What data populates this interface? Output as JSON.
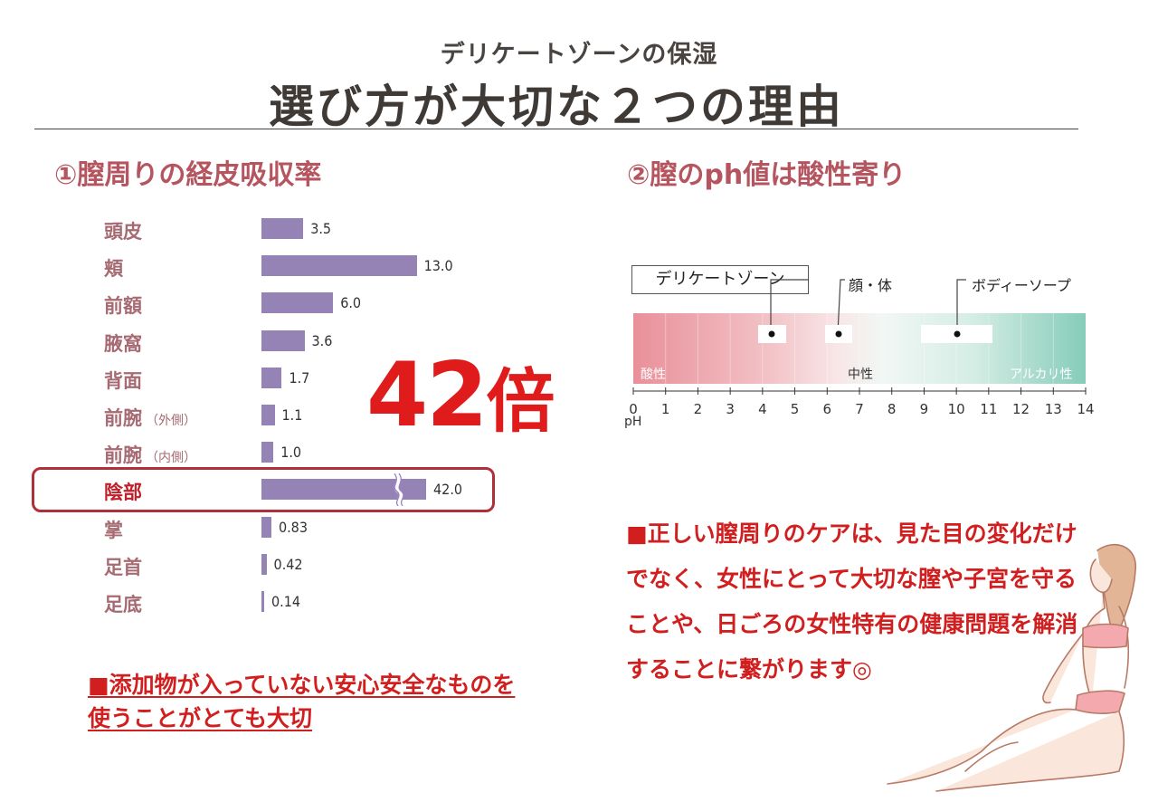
{
  "header": {
    "subtitle": "デリケートゾーンの保湿",
    "title": "選び方が大切な２つの理由"
  },
  "section1": {
    "heading": "①膣周りの経皮吸収率",
    "big_ratio_number": "42",
    "big_ratio_unit": "倍",
    "note": "■添加物が入っていない安心安全なものを使うことがとても大切"
  },
  "chart_data": {
    "type": "bar",
    "orientation": "horizontal",
    "categories": [
      "頭皮",
      "頬",
      "前額",
      "腋窩",
      "背面",
      "前腕",
      "前腕",
      "陰部",
      "掌",
      "足首",
      "足底"
    ],
    "category_notes": [
      "",
      "",
      "",
      "",
      "",
      "（外側）",
      "（内側）",
      "",
      "",
      "",
      ""
    ],
    "values": [
      3.5,
      13.0,
      6.0,
      3.6,
      1.7,
      1.1,
      1.0,
      42.0,
      0.83,
      0.42,
      0.14
    ],
    "value_labels": [
      "3.5",
      "13.0",
      "6.0",
      "3.6",
      "1.7",
      "1.1",
      "1.0",
      "42.0",
      "0.83",
      "0.42",
      "0.14"
    ],
    "highlighted": "陰部",
    "axis_break_on": "陰部",
    "bar_color": "#9583b6"
  },
  "section2": {
    "heading": "②膣のph値は酸性寄り",
    "zone_label": "デリケートゾーン",
    "callout_face": "顔・体",
    "callout_soap": "ボディーソープ",
    "acid_label": "酸性",
    "neutral_label": "中性",
    "alkali_label": "アルカリ性",
    "ph_unit": "pH",
    "ph_ticks": [
      "0",
      "1",
      "2",
      "3",
      "4",
      "5",
      "6",
      "7",
      "8",
      "9",
      "10",
      "11",
      "12",
      "13",
      "14"
    ],
    "ph_markers": {
      "delicate_zone": 4.3,
      "face_body": 6.3,
      "body_soap": 10.0
    },
    "note": "■正しい膣周りのケアは、見た目の変化だけでなく、女性にとって大切な膣や子宮を守ることや、日ごろの女性特有の健康問題を解消することに繋がります◎"
  },
  "colors": {
    "accent_red": "#d11f1f",
    "heading_rose": "#b5555f",
    "acid_pink": "#e9949c",
    "alkali_green": "#8ccfbd"
  }
}
